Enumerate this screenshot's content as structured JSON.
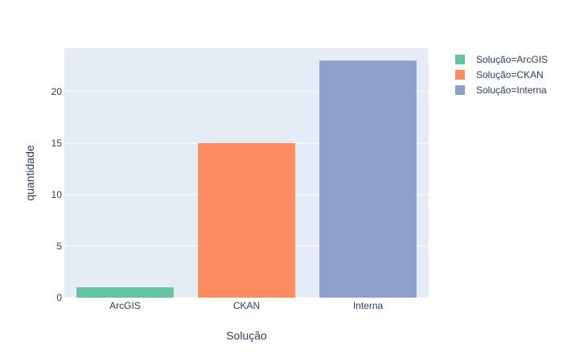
{
  "chart_data": {
    "type": "bar",
    "xlabel": "Solução",
    "ylabel": "quantidade",
    "categories": [
      "ArcGIS",
      "CKAN",
      "Interna"
    ],
    "series": [
      {
        "name": "Solução=ArcGIS",
        "category": "ArcGIS",
        "value": 1,
        "color": "#66c2a5"
      },
      {
        "name": "Solução=CKAN",
        "category": "CKAN",
        "value": 15,
        "color": "#fc8d62"
      },
      {
        "name": "Solução=Interna",
        "category": "Interna",
        "value": 23,
        "color": "#8da0cb"
      }
    ],
    "ylim": [
      0,
      24.2
    ],
    "yticks": [
      0,
      5,
      10,
      15,
      20
    ],
    "grid": true,
    "legend_position": "top-right",
    "plot_bg": "#e5ecf6",
    "grid_color": "#ffffff"
  }
}
